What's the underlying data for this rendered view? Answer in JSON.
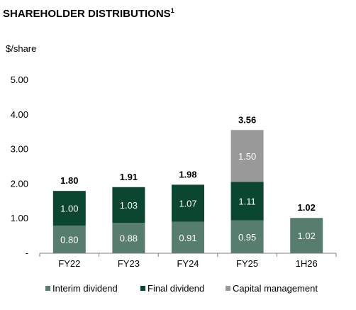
{
  "chart_data": {
    "type": "bar",
    "stacked": true,
    "title": "SHAREHOLDER DISTRIBUTIONS",
    "title_footnote": "1",
    "ylabel": "$/share",
    "ylim": [
      0,
      5
    ],
    "yticks": [
      0,
      1,
      2,
      3,
      4,
      5
    ],
    "ytick_labels": [
      "-",
      "1.00",
      "2.00",
      "3.00",
      "4.00",
      "5.00"
    ],
    "grid": false,
    "legend_position": "bottom",
    "categories": [
      "FY22",
      "FY23",
      "FY24",
      "FY25",
      "1H26"
    ],
    "series": [
      {
        "name": "Interim dividend",
        "color": "#577d6e",
        "values": [
          0.8,
          0.88,
          0.91,
          0.95,
          1.02
        ],
        "labels": [
          "0.80",
          "0.88",
          "0.91",
          "0.95",
          "1.02"
        ]
      },
      {
        "name": "Final dividend",
        "color": "#0b4630",
        "values": [
          1.0,
          1.03,
          1.07,
          1.11,
          null
        ],
        "labels": [
          "1.00",
          "1.03",
          "1.07",
          "1.11",
          ""
        ]
      },
      {
        "name": "Capital management",
        "color": "#999999",
        "values": [
          null,
          null,
          null,
          1.5,
          null
        ],
        "labels": [
          "",
          "",
          "",
          "1.50",
          ""
        ]
      }
    ],
    "totals": [
      1.8,
      1.91,
      1.98,
      3.56,
      1.02
    ],
    "total_labels": [
      "1.80",
      "1.91",
      "1.98",
      "3.56",
      "1.02"
    ]
  }
}
